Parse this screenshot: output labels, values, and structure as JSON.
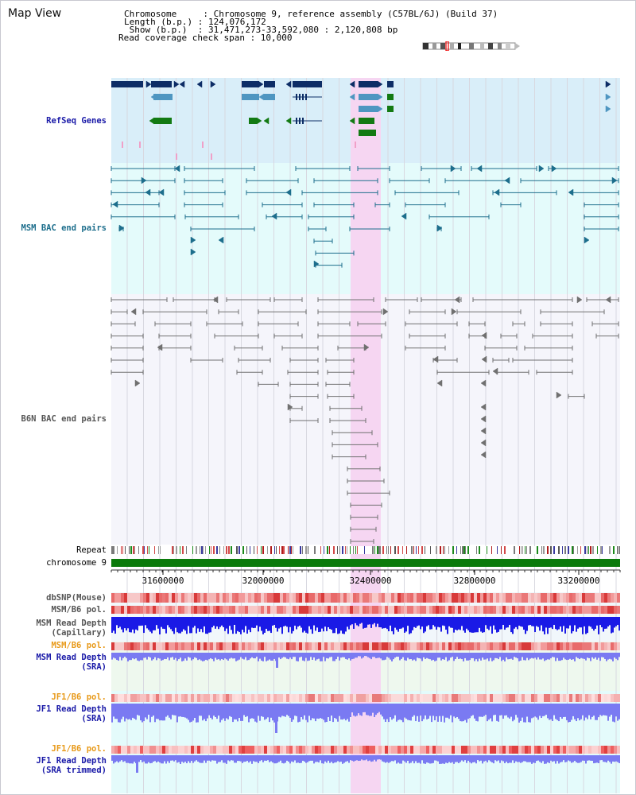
{
  "map_title": "Map View",
  "header": {
    "chromosome_line": "Chromosome     : Chromosome 9, reference assembly (C57BL/6J) (Build 37)",
    "length_line": "Length (b.p.) : 124,076,172",
    "show_line": " Show (b.p.)  : 31,471,273-33,592,080 : 2,120,808 bp",
    "coverage_line": "Read coverage check span : 10,000"
  },
  "tracks": {
    "refseq": "RefSeq Genes",
    "msm_bac": "MSM BAC end pairs",
    "b6n_bac": "B6N BAC end pairs",
    "repeat": "Repeat",
    "chromosome": "chromosome 9",
    "dbsnp": "dbSNP(Mouse)",
    "msm_b6_pol_1": "MSM/B6 pol.",
    "msm_capillary": "MSM Read Depth\n(Capillary)",
    "msm_b6_pol_2": "MSM/B6 pol.",
    "msm_sra": "MSM Read Depth\n(SRA)",
    "jf1_b6_pol_1": "JF1/B6 pol.",
    "jf1_sra": "JF1 Read Depth\n(SRA)",
    "jf1_b6_pol_2": "JF1/B6 pol.",
    "jf1_sra_trimmed": "JF1 Read Depth\n(SRA trimmed)"
  },
  "axis": {
    "ticks": [
      "31600000",
      "32000000",
      "32400000",
      "32800000",
      "33200000"
    ]
  },
  "colors": {
    "refseq_bg": "#d9eef9",
    "msm_bg": "#e4fbfb",
    "b6n_bg": "#f5f5fb",
    "highlight": "#f6d6f2",
    "gene_dark": "#0d2d66",
    "gene_mid": "#4f96c1",
    "gene_green": "#137a13",
    "msm_line": "#1d6e8c",
    "b6n_line": "#707070",
    "chromosome": "#0b7a0b",
    "depth_capillary": "#1a1ae6",
    "depth_sra": "#7a7af2",
    "label_blue": "#1a1aa8",
    "label_teal": "#1d6e8c",
    "label_gray": "#555555",
    "label_orange": "#e89a1a"
  }
}
